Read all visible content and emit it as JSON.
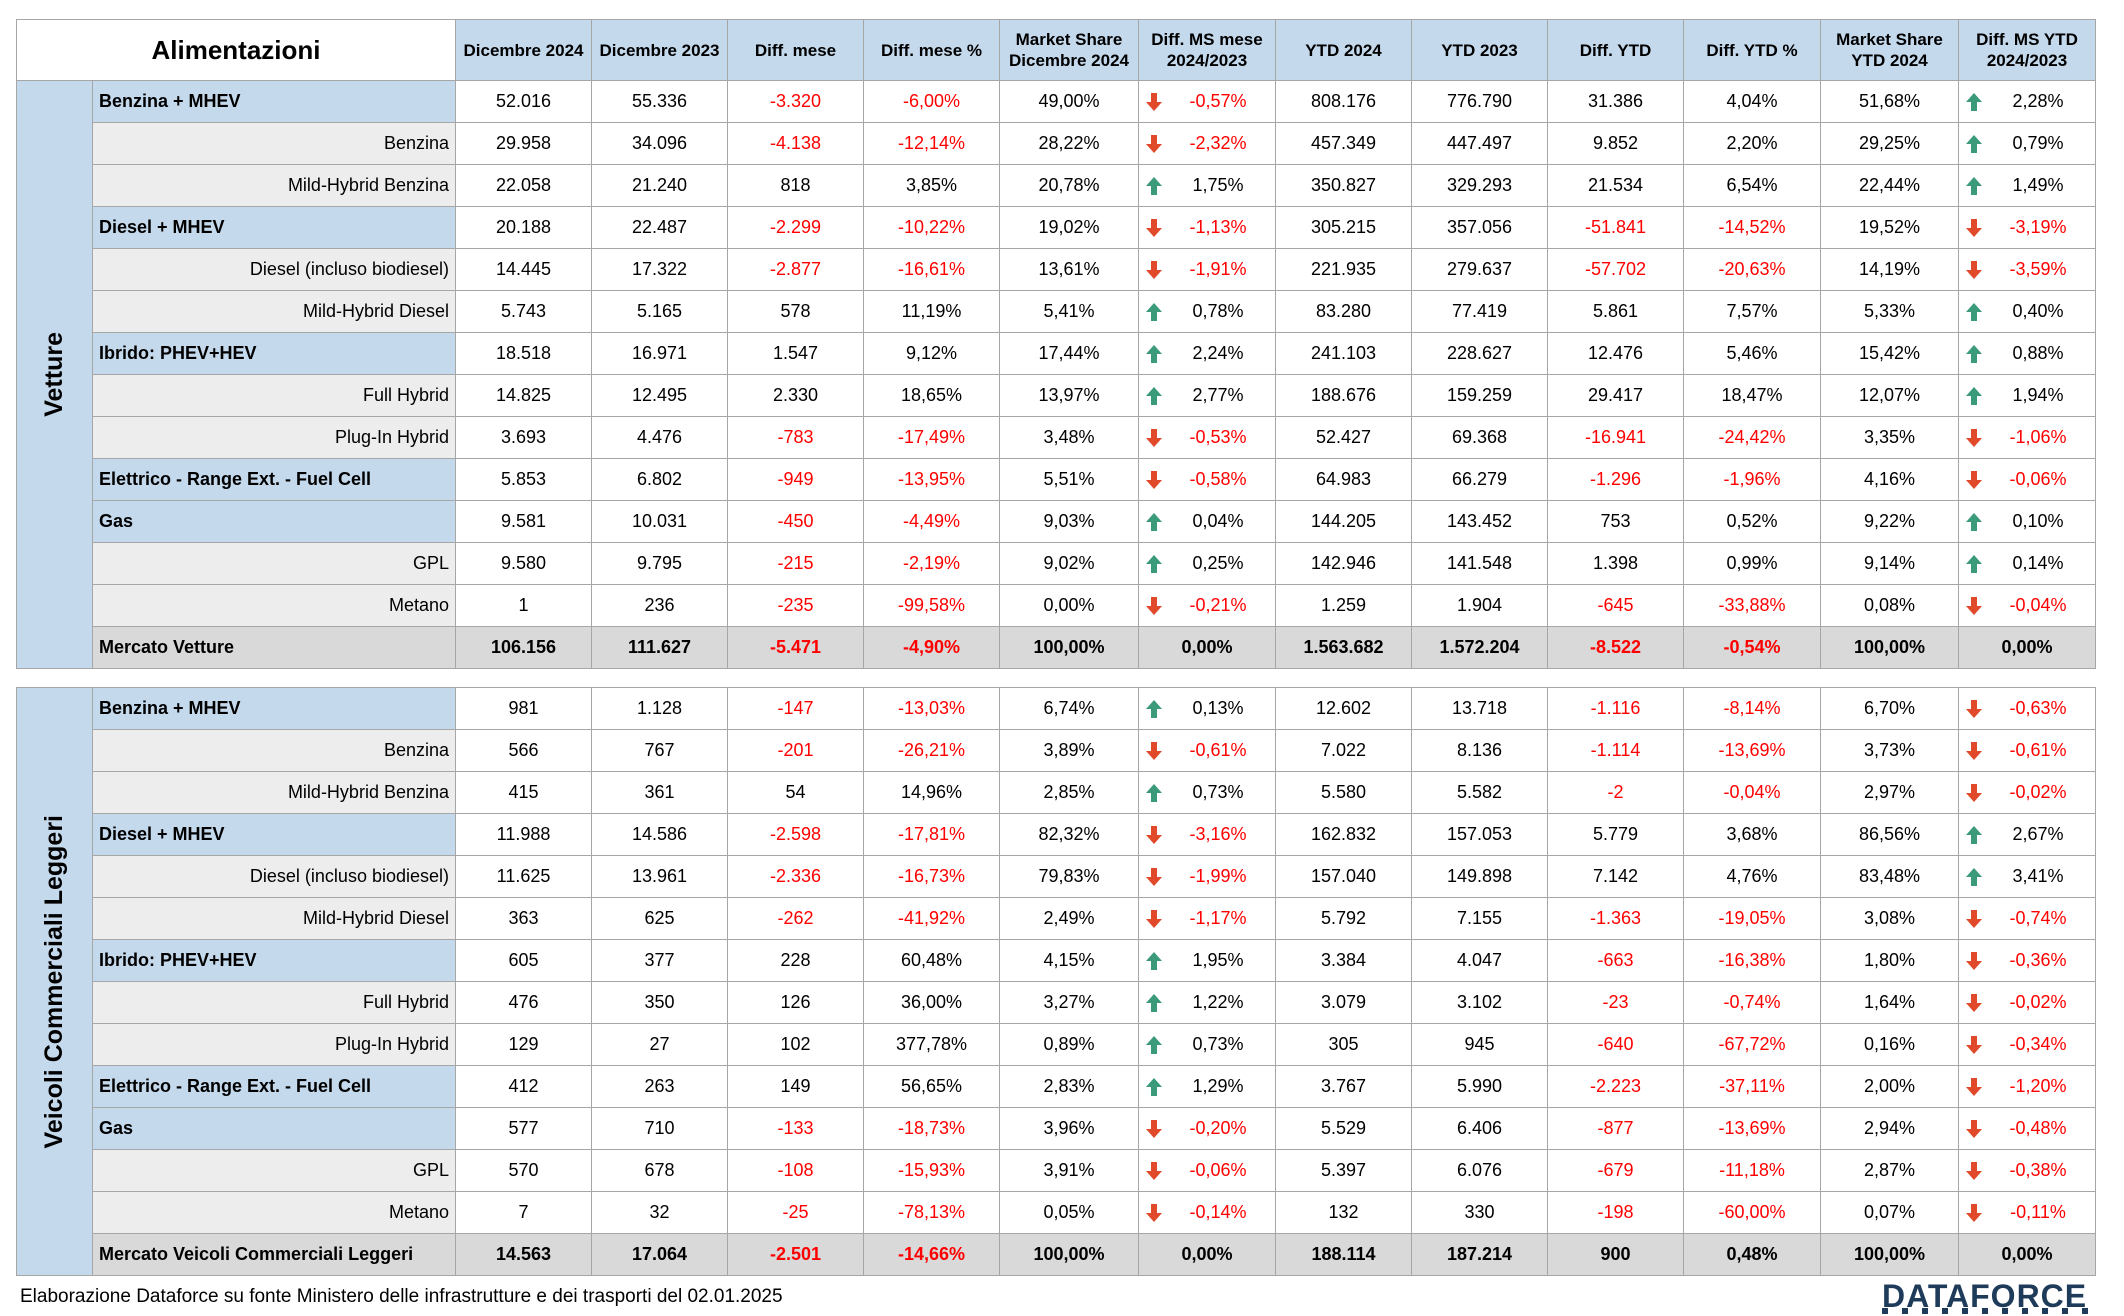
{
  "header": {
    "title": "Alimentazioni",
    "columns": [
      "Dicembre 2024",
      "Dicembre 2023",
      "Diff. mese",
      "Diff. mese %",
      "Market Share Dicembre 2024",
      "Diff. MS mese 2024/2023",
      "YTD 2024",
      "YTD 2023",
      "Diff. YTD",
      "Diff. YTD %",
      "Market Share YTD 2024",
      "Diff. MS YTD 2024/2023"
    ]
  },
  "sections": [
    {
      "name": "Vetture",
      "rows": [
        {
          "label": "Benzina + MHEV",
          "type": "group",
          "values": [
            "52.016",
            "55.336",
            "-3.320",
            "-6,00%",
            "49,00%",
            "-0,57%",
            "808.176",
            "776.790",
            "31.386",
            "4,04%",
            "51,68%",
            "2,28%"
          ],
          "arrows": [
            "down",
            "up"
          ]
        },
        {
          "label": "Benzina",
          "type": "sub",
          "values": [
            "29.958",
            "34.096",
            "-4.138",
            "-12,14%",
            "28,22%",
            "-2,32%",
            "457.349",
            "447.497",
            "9.852",
            "2,20%",
            "29,25%",
            "0,79%"
          ],
          "arrows": [
            "down",
            "up"
          ]
        },
        {
          "label": "Mild-Hybrid Benzina",
          "type": "sub",
          "values": [
            "22.058",
            "21.240",
            "818",
            "3,85%",
            "20,78%",
            "1,75%",
            "350.827",
            "329.293",
            "21.534",
            "6,54%",
            "22,44%",
            "1,49%"
          ],
          "arrows": [
            "up",
            "up"
          ]
        },
        {
          "label": "Diesel + MHEV",
          "type": "group",
          "values": [
            "20.188",
            "22.487",
            "-2.299",
            "-10,22%",
            "19,02%",
            "-1,13%",
            "305.215",
            "357.056",
            "-51.841",
            "-14,52%",
            "19,52%",
            "-3,19%"
          ],
          "arrows": [
            "down",
            "down"
          ]
        },
        {
          "label": "Diesel (incluso biodiesel)",
          "type": "sub",
          "values": [
            "14.445",
            "17.322",
            "-2.877",
            "-16,61%",
            "13,61%",
            "-1,91%",
            "221.935",
            "279.637",
            "-57.702",
            "-20,63%",
            "14,19%",
            "-3,59%"
          ],
          "arrows": [
            "down",
            "down"
          ]
        },
        {
          "label": "Mild-Hybrid Diesel",
          "type": "sub",
          "values": [
            "5.743",
            "5.165",
            "578",
            "11,19%",
            "5,41%",
            "0,78%",
            "83.280",
            "77.419",
            "5.861",
            "7,57%",
            "5,33%",
            "0,40%"
          ],
          "arrows": [
            "up",
            "up"
          ]
        },
        {
          "label": "Ibrido: PHEV+HEV",
          "type": "group",
          "values": [
            "18.518",
            "16.971",
            "1.547",
            "9,12%",
            "17,44%",
            "2,24%",
            "241.103",
            "228.627",
            "12.476",
            "5,46%",
            "15,42%",
            "0,88%"
          ],
          "arrows": [
            "up",
            "up"
          ]
        },
        {
          "label": "Full Hybrid",
          "type": "sub",
          "values": [
            "14.825",
            "12.495",
            "2.330",
            "18,65%",
            "13,97%",
            "2,77%",
            "188.676",
            "159.259",
            "29.417",
            "18,47%",
            "12,07%",
            "1,94%"
          ],
          "arrows": [
            "up",
            "up"
          ]
        },
        {
          "label": "Plug-In Hybrid",
          "type": "sub",
          "values": [
            "3.693",
            "4.476",
            "-783",
            "-17,49%",
            "3,48%",
            "-0,53%",
            "52.427",
            "69.368",
            "-16.941",
            "-24,42%",
            "3,35%",
            "-1,06%"
          ],
          "arrows": [
            "down",
            "down"
          ]
        },
        {
          "label": "Elettrico - Range Ext. - Fuel Cell",
          "type": "group",
          "values": [
            "5.853",
            "6.802",
            "-949",
            "-13,95%",
            "5,51%",
            "-0,58%",
            "64.983",
            "66.279",
            "-1.296",
            "-1,96%",
            "4,16%",
            "-0,06%"
          ],
          "arrows": [
            "down",
            "down"
          ]
        },
        {
          "label": "Gas",
          "type": "group",
          "values": [
            "9.581",
            "10.031",
            "-450",
            "-4,49%",
            "9,03%",
            "0,04%",
            "144.205",
            "143.452",
            "753",
            "0,52%",
            "9,22%",
            "0,10%"
          ],
          "arrows": [
            "up",
            "up"
          ]
        },
        {
          "label": "GPL",
          "type": "sub",
          "values": [
            "9.580",
            "9.795",
            "-215",
            "-2,19%",
            "9,02%",
            "0,25%",
            "142.946",
            "141.548",
            "1.398",
            "0,99%",
            "9,14%",
            "0,14%"
          ],
          "arrows": [
            "up",
            "up"
          ]
        },
        {
          "label": "Metano",
          "type": "sub",
          "values": [
            "1",
            "236",
            "-235",
            "-99,58%",
            "0,00%",
            "-0,21%",
            "1.259",
            "1.904",
            "-645",
            "-33,88%",
            "0,08%",
            "-0,04%"
          ],
          "arrows": [
            "down",
            "down"
          ]
        },
        {
          "label": "Mercato Vetture",
          "type": "total",
          "values": [
            "106.156",
            "111.627",
            "-5.471",
            "-4,90%",
            "100,00%",
            "0,00%",
            "1.563.682",
            "1.572.204",
            "-8.522",
            "-0,54%",
            "100,00%",
            "0,00%"
          ],
          "arrows": [
            "",
            ""
          ]
        }
      ]
    },
    {
      "name": "Veicoli Commerciali Leggeri",
      "rows": [
        {
          "label": "Benzina + MHEV",
          "type": "group",
          "values": [
            "981",
            "1.128",
            "-147",
            "-13,03%",
            "6,74%",
            "0,13%",
            "12.602",
            "13.718",
            "-1.116",
            "-8,14%",
            "6,70%",
            "-0,63%"
          ],
          "arrows": [
            "up",
            "down"
          ]
        },
        {
          "label": "Benzina",
          "type": "sub",
          "values": [
            "566",
            "767",
            "-201",
            "-26,21%",
            "3,89%",
            "-0,61%",
            "7.022",
            "8.136",
            "-1.114",
            "-13,69%",
            "3,73%",
            "-0,61%"
          ],
          "arrows": [
            "down",
            "down"
          ]
        },
        {
          "label": "Mild-Hybrid Benzina",
          "type": "sub",
          "values": [
            "415",
            "361",
            "54",
            "14,96%",
            "2,85%",
            "0,73%",
            "5.580",
            "5.582",
            "-2",
            "-0,04%",
            "2,97%",
            "-0,02%"
          ],
          "arrows": [
            "up",
            "down"
          ]
        },
        {
          "label": "Diesel + MHEV",
          "type": "group",
          "values": [
            "11.988",
            "14.586",
            "-2.598",
            "-17,81%",
            "82,32%",
            "-3,16%",
            "162.832",
            "157.053",
            "5.779",
            "3,68%",
            "86,56%",
            "2,67%"
          ],
          "arrows": [
            "down",
            "up"
          ]
        },
        {
          "label": "Diesel (incluso biodiesel)",
          "type": "sub",
          "values": [
            "11.625",
            "13.961",
            "-2.336",
            "-16,73%",
            "79,83%",
            "-1,99%",
            "157.040",
            "149.898",
            "7.142",
            "4,76%",
            "83,48%",
            "3,41%"
          ],
          "arrows": [
            "down",
            "up"
          ]
        },
        {
          "label": "Mild-Hybrid Diesel",
          "type": "sub",
          "values": [
            "363",
            "625",
            "-262",
            "-41,92%",
            "2,49%",
            "-1,17%",
            "5.792",
            "7.155",
            "-1.363",
            "-19,05%",
            "3,08%",
            "-0,74%"
          ],
          "arrows": [
            "down",
            "down"
          ]
        },
        {
          "label": "Ibrido: PHEV+HEV",
          "type": "group",
          "values": [
            "605",
            "377",
            "228",
            "60,48%",
            "4,15%",
            "1,95%",
            "3.384",
            "4.047",
            "-663",
            "-16,38%",
            "1,80%",
            "-0,36%"
          ],
          "arrows": [
            "up",
            "down"
          ]
        },
        {
          "label": "Full Hybrid",
          "type": "sub",
          "values": [
            "476",
            "350",
            "126",
            "36,00%",
            "3,27%",
            "1,22%",
            "3.079",
            "3.102",
            "-23",
            "-0,74%",
            "1,64%",
            "-0,02%"
          ],
          "arrows": [
            "up",
            "down"
          ]
        },
        {
          "label": "Plug-In Hybrid",
          "type": "sub",
          "values": [
            "129",
            "27",
            "102",
            "377,78%",
            "0,89%",
            "0,73%",
            "305",
            "945",
            "-640",
            "-67,72%",
            "0,16%",
            "-0,34%"
          ],
          "arrows": [
            "up",
            "down"
          ]
        },
        {
          "label": "Elettrico - Range Ext. - Fuel Cell",
          "type": "group",
          "values": [
            "412",
            "263",
            "149",
            "56,65%",
            "2,83%",
            "1,29%",
            "3.767",
            "5.990",
            "-2.223",
            "-37,11%",
            "2,00%",
            "-1,20%"
          ],
          "arrows": [
            "up",
            "down"
          ]
        },
        {
          "label": "Gas",
          "type": "group",
          "values": [
            "577",
            "710",
            "-133",
            "-18,73%",
            "3,96%",
            "-0,20%",
            "5.529",
            "6.406",
            "-877",
            "-13,69%",
            "2,94%",
            "-0,48%"
          ],
          "arrows": [
            "down",
            "down"
          ]
        },
        {
          "label": "GPL",
          "type": "sub",
          "values": [
            "570",
            "678",
            "-108",
            "-15,93%",
            "3,91%",
            "-0,06%",
            "5.397",
            "6.076",
            "-679",
            "-11,18%",
            "2,87%",
            "-0,38%"
          ],
          "arrows": [
            "down",
            "down"
          ]
        },
        {
          "label": "Metano",
          "type": "sub",
          "values": [
            "7",
            "32",
            "-25",
            "-78,13%",
            "0,05%",
            "-0,14%",
            "132",
            "330",
            "-198",
            "-60,00%",
            "0,07%",
            "-0,11%"
          ],
          "arrows": [
            "down",
            "down"
          ]
        },
        {
          "label": "Mercato Veicoli Commerciali Leggeri",
          "type": "total",
          "values": [
            "14.563",
            "17.064",
            "-2.501",
            "-14,66%",
            "100,00%",
            "0,00%",
            "188.114",
            "187.214",
            "900",
            "0,48%",
            "100,00%",
            "0,00%"
          ],
          "arrows": [
            "",
            ""
          ]
        }
      ]
    }
  ],
  "footer": {
    "source_note": "Elaborazione Dataforce su fonte Ministero delle infrastrutture e dei trasporti del 02.01.2025",
    "logo_text": "DATAFORCE"
  },
  "colors": {
    "header_bg": "#c5d9ed",
    "sub_bg": "#ededed",
    "total_bg": "#d9d9d9",
    "negative": "#ff0000",
    "arrow_up": "#3a9a7a",
    "arrow_down": "#e04a2a"
  }
}
